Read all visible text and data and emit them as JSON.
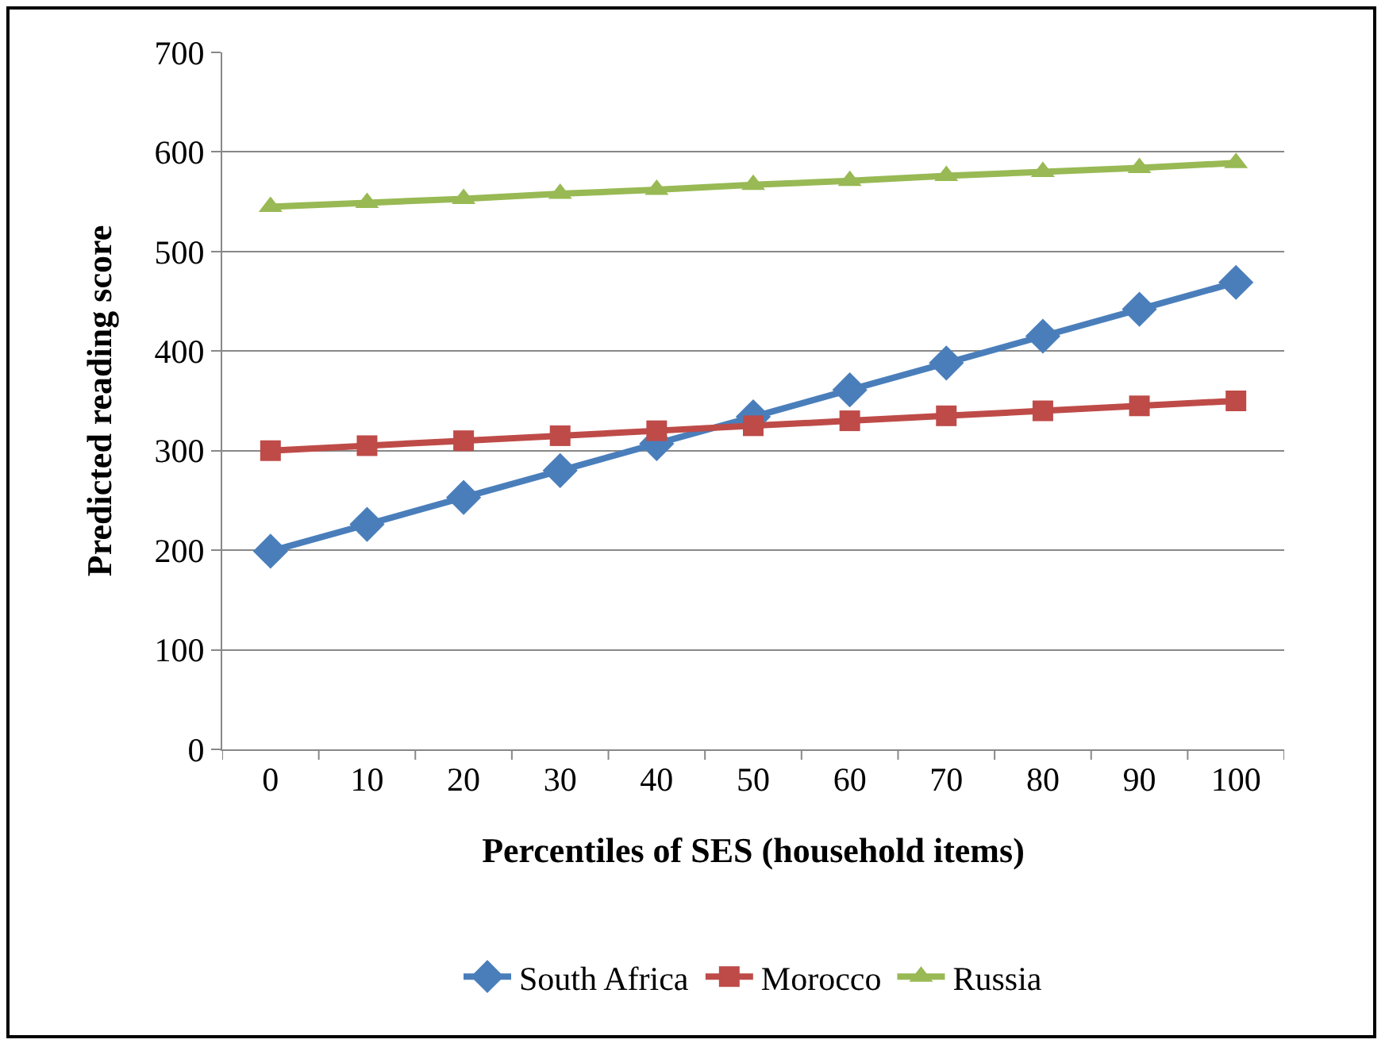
{
  "chart_data": {
    "type": "line",
    "xlabel": "Percentiles of SES (household items)",
    "ylabel": "Predicted reading score",
    "categories": [
      "0",
      "10",
      "20",
      "30",
      "40",
      "50",
      "60",
      "70",
      "80",
      "90",
      "100"
    ],
    "series": [
      {
        "name": "South Africa",
        "color": "#4a7ebb",
        "marker": "diamond",
        "values": [
          199,
          226,
          253,
          280,
          307,
          334,
          361,
          388,
          415,
          442,
          469
        ]
      },
      {
        "name": "Morocco",
        "color": "#be4b48",
        "marker": "square",
        "values": [
          300,
          305,
          310,
          315,
          320,
          325,
          330,
          335,
          340,
          345,
          350
        ]
      },
      {
        "name": "Russia",
        "color": "#98b954",
        "marker": "triangle",
        "values": [
          545,
          549,
          553,
          558,
          562,
          567,
          571,
          576,
          580,
          584,
          589
        ]
      }
    ],
    "ylim": [
      0,
      700
    ],
    "yticks": [
      0,
      100,
      200,
      300,
      400,
      500,
      600,
      700
    ],
    "grid": "y",
    "legend": "bottom",
    "line_style": "solid"
  }
}
